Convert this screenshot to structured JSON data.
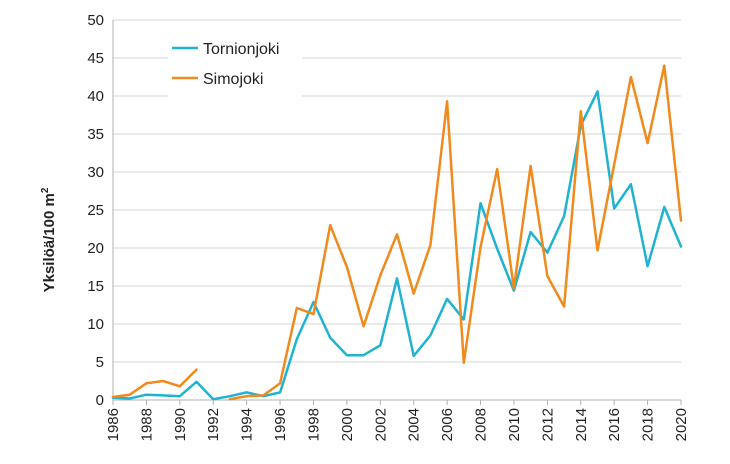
{
  "chart_data": {
    "type": "line",
    "title": "",
    "xlabel": "",
    "ylabel": "Yksilöä/100 m",
    "ylabel_superscript": "2",
    "xlim": [
      1986,
      2020
    ],
    "ylim": [
      0,
      50
    ],
    "y_ticks": [
      0,
      5,
      10,
      15,
      20,
      25,
      30,
      35,
      40,
      45,
      50
    ],
    "x_ticks": [
      1986,
      1988,
      1990,
      1992,
      1994,
      1996,
      1998,
      2000,
      2002,
      2004,
      2006,
      2008,
      2010,
      2012,
      2014,
      2016,
      2018,
      2020
    ],
    "grid": "horizontal",
    "legend_position": "top-left",
    "series": [
      {
        "name": "Tornionjoki",
        "color": "#1fb3d1",
        "segments": [
          [
            [
              1986,
              0.3
            ],
            [
              1987,
              0.2
            ],
            [
              1988,
              0.7
            ],
            [
              1989,
              0.6
            ],
            [
              1990,
              0.5
            ],
            [
              1991,
              2.4
            ],
            [
              1992,
              0.1
            ],
            [
              1993,
              0.5
            ],
            [
              1994,
              1.0
            ],
            [
              1995,
              0.5
            ],
            [
              1996,
              1.0
            ],
            [
              1997,
              8.0
            ],
            [
              1998,
              12.9
            ],
            [
              1999,
              8.2
            ],
            [
              2000,
              5.9
            ],
            [
              2001,
              5.9
            ],
            [
              2002,
              7.2
            ],
            [
              2003,
              16.0
            ],
            [
              2004,
              5.8
            ],
            [
              2005,
              8.5
            ],
            [
              2006,
              13.3
            ],
            [
              2007,
              10.6
            ],
            [
              2008,
              25.9
            ],
            [
              2009,
              19.9
            ],
            [
              2010,
              14.4
            ],
            [
              2011,
              22.1
            ],
            [
              2012,
              19.4
            ],
            [
              2013,
              24.2
            ],
            [
              2014,
              36.1
            ],
            [
              2015,
              40.6
            ],
            [
              2016,
              25.2
            ],
            [
              2017,
              28.4
            ],
            [
              2018,
              17.6
            ],
            [
              2019,
              25.4
            ],
            [
              2020,
              20.2
            ]
          ]
        ]
      },
      {
        "name": "Simojoki",
        "color": "#f08a1d",
        "segments": [
          [
            [
              1986,
              0.4
            ],
            [
              1987,
              0.7
            ],
            [
              1988,
              2.2
            ],
            [
              1989,
              2.5
            ],
            [
              1990,
              1.8
            ],
            [
              1991,
              4.0
            ]
          ],
          [
            [
              1993,
              0.1
            ],
            [
              1994,
              0.5
            ],
            [
              1995,
              0.6
            ],
            [
              1996,
              2.2
            ],
            [
              1997,
              12.1
            ],
            [
              1998,
              11.3
            ],
            [
              1999,
              23.0
            ],
            [
              2000,
              17.5
            ],
            [
              2001,
              9.7
            ],
            [
              2002,
              16.4
            ],
            [
              2003,
              21.8
            ],
            [
              2004,
              14.0
            ],
            [
              2005,
              20.4
            ],
            [
              2006,
              39.3
            ],
            [
              2007,
              4.9
            ],
            [
              2008,
              20.1
            ],
            [
              2009,
              30.4
            ],
            [
              2010,
              14.7
            ],
            [
              2011,
              30.8
            ],
            [
              2012,
              16.3
            ],
            [
              2013,
              12.3
            ],
            [
              2014,
              38.0
            ],
            [
              2015,
              19.7
            ],
            [
              2016,
              31.0
            ],
            [
              2017,
              42.5
            ],
            [
              2018,
              33.8
            ],
            [
              2019,
              44.0
            ],
            [
              2020,
              23.6
            ]
          ]
        ]
      }
    ]
  }
}
